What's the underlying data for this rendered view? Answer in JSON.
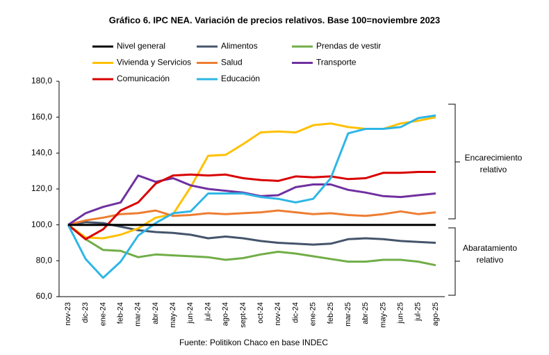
{
  "chart_data": {
    "type": "line",
    "title": "Gráfico 6. IPC NEA. Variación de precios relativos. Base 100=noviembre 2023",
    "source": "Fuente: Politikon Chaco en base INDEC",
    "categories": [
      "nov-23",
      "dic-23",
      "ene-24",
      "feb-24",
      "mar-24",
      "abr-24",
      "may-24",
      "jun-24",
      "jul-24",
      "ago-24",
      "sept-24",
      "oct-24",
      "nov-24",
      "dic-24",
      "ene-25",
      "feb-25",
      "mar-25",
      "abr-25",
      "may-25",
      "jun-25",
      "jul-25",
      "ago-25"
    ],
    "ylim": [
      60,
      180
    ],
    "yticks": [
      {
        "value": 60,
        "label": "60,0"
      },
      {
        "value": 80,
        "label": "80,0"
      },
      {
        "value": 100,
        "label": "100,0"
      },
      {
        "value": 120,
        "label": "120,0"
      },
      {
        "value": 140,
        "label": "140,0"
      },
      {
        "value": 160,
        "label": "160,0"
      },
      {
        "value": 180,
        "label": "180,0"
      }
    ],
    "grid": false,
    "annotations": [
      [
        "Encarecimiento",
        "relativo"
      ],
      [
        "Abaratamiento",
        "relativo"
      ]
    ],
    "series": [
      {
        "name": "Nivel general",
        "color": "#000000",
        "values": [
          100,
          100,
          100,
          100,
          100,
          100,
          100,
          100,
          100,
          100,
          100,
          100,
          100,
          100,
          100,
          100,
          100,
          100,
          100,
          100,
          100,
          100
        ]
      },
      {
        "name": "Alimentos",
        "color": "#44546a",
        "values": [
          100,
          101.5,
          101,
          99,
          97,
          96,
          95.5,
          94.5,
          92.5,
          93.5,
          92.5,
          91,
          90,
          89.5,
          89,
          89.5,
          92,
          92.5,
          92,
          91,
          90.5,
          90
        ]
      },
      {
        "name": "Prendas de vestir",
        "color": "#70ad47",
        "values": [
          100,
          92,
          86,
          85.5,
          82,
          83.5,
          83,
          82.5,
          82,
          80.5,
          81.5,
          83.5,
          85,
          84,
          82.5,
          81,
          79.5,
          79.5,
          80.5,
          80.5,
          79.5,
          77.5
        ]
      },
      {
        "name": "Vivienda y Servicios",
        "color": "#ffc000",
        "values": [
          100,
          93,
          92.5,
          94.5,
          98,
          104,
          106,
          121,
          138.5,
          139,
          145,
          151.5,
          152,
          151.5,
          155.5,
          156.5,
          154.5,
          153.5,
          153.5,
          156.5,
          158,
          160
        ]
      },
      {
        "name": "Salud",
        "color": "#ed7d31",
        "values": [
          100,
          102.5,
          104,
          106,
          106.5,
          108,
          105,
          105.5,
          106.5,
          106,
          106.5,
          107,
          108,
          107,
          106,
          106.5,
          105.5,
          105,
          106,
          107.5,
          106,
          107
        ]
      },
      {
        "name": "Transporte",
        "color": "#7030a0",
        "values": [
          100,
          106.5,
          110,
          112.5,
          127.5,
          124,
          126,
          122,
          120,
          119,
          118,
          116,
          116.5,
          121,
          122.5,
          122.5,
          119.5,
          118,
          116,
          115.5,
          116.5,
          117.5
        ]
      },
      {
        "name": "Comunicación",
        "color": "#d90000",
        "values": [
          100,
          92,
          97.5,
          108,
          112.5,
          123,
          127.5,
          128,
          127.5,
          128,
          126,
          125,
          124.5,
          127,
          126.5,
          127,
          125.5,
          126,
          129,
          129,
          129.5,
          129.5
        ]
      },
      {
        "name": "Educación",
        "color": "#2eb6e6",
        "values": [
          100,
          81,
          70.5,
          79.5,
          94,
          101,
          106.5,
          107.5,
          117.5,
          117.5,
          117.5,
          115.5,
          114.5,
          112.5,
          114.5,
          126,
          151,
          153.5,
          153.5,
          154.5,
          159.5,
          161
        ]
      }
    ]
  }
}
